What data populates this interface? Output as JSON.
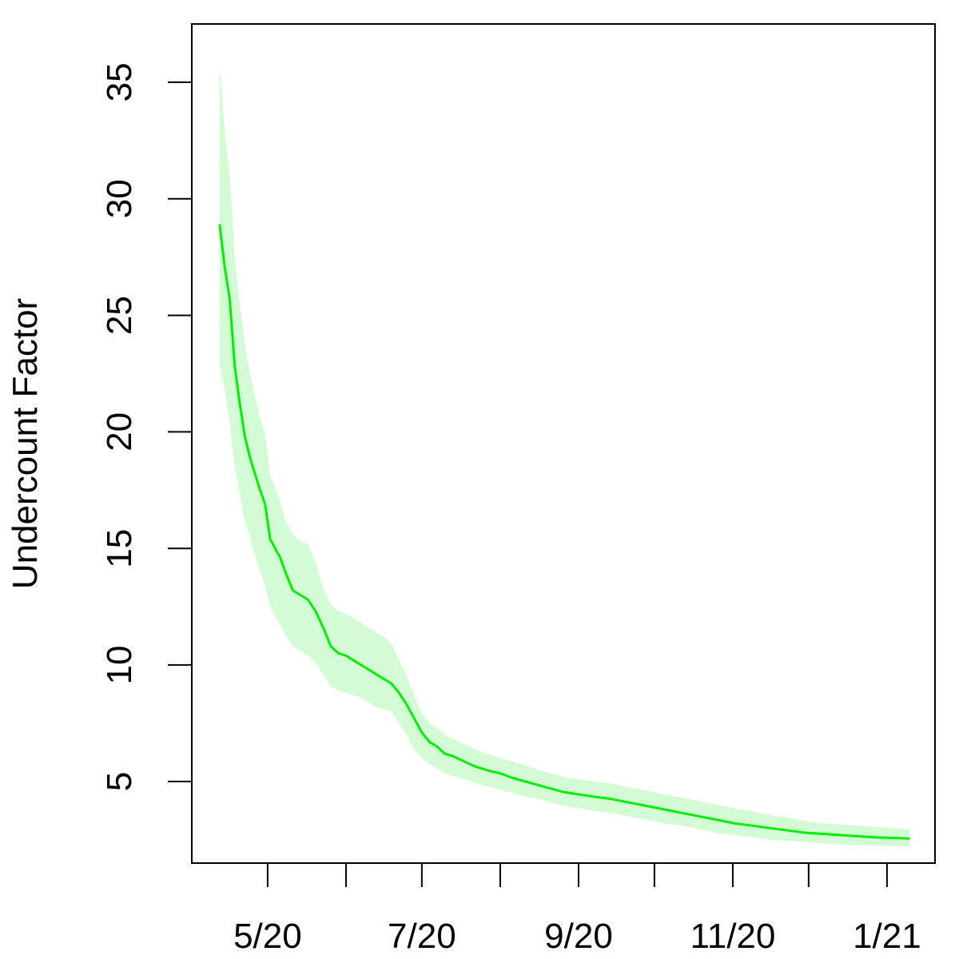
{
  "chart_data": {
    "type": "area",
    "title": "",
    "xlabel": "",
    "ylabel": "Undercount Factor",
    "x_unit": "date",
    "xlim": [
      "2020-04-01",
      "2021-01-20"
    ],
    "ylim": [
      1.5,
      37.5
    ],
    "x_ticks": [
      {
        "date": "2020-05-01",
        "label": "5/20"
      },
      {
        "date": "2020-06-01",
        "label": ""
      },
      {
        "date": "2020-07-01",
        "label": "7/20"
      },
      {
        "date": "2020-08-01",
        "label": ""
      },
      {
        "date": "2020-09-01",
        "label": "9/20"
      },
      {
        "date": "2020-10-01",
        "label": ""
      },
      {
        "date": "2020-11-01",
        "label": "11/20"
      },
      {
        "date": "2020-12-01",
        "label": ""
      },
      {
        "date": "2021-01-01",
        "label": "1/21"
      }
    ],
    "y_ticks": [
      5,
      10,
      15,
      20,
      25,
      30,
      35
    ],
    "grid": false,
    "colors": {
      "line": "#00ee00",
      "band": "#d4fcd4",
      "axis": "#000000"
    },
    "series": [
      {
        "x": [
          "2020-04-12",
          "2020-04-14",
          "2020-04-16",
          "2020-04-18",
          "2020-04-20",
          "2020-04-22",
          "2020-04-24",
          "2020-04-26",
          "2020-04-28",
          "2020-04-30",
          "2020-05-02",
          "2020-05-04",
          "2020-05-06",
          "2020-05-08",
          "2020-05-11",
          "2020-05-14",
          "2020-05-17",
          "2020-05-20",
          "2020-05-23",
          "2020-05-26",
          "2020-05-29",
          "2020-06-01",
          "2020-06-04",
          "2020-06-07",
          "2020-06-10",
          "2020-06-13",
          "2020-06-16",
          "2020-06-19",
          "2020-06-22",
          "2020-06-25",
          "2020-06-28",
          "2020-07-01",
          "2020-07-04",
          "2020-07-07",
          "2020-07-10",
          "2020-07-13",
          "2020-07-16",
          "2020-07-19",
          "2020-07-22",
          "2020-07-25",
          "2020-07-28",
          "2020-08-01",
          "2020-08-06",
          "2020-08-11",
          "2020-08-16",
          "2020-08-21",
          "2020-08-26",
          "2020-09-01",
          "2020-09-07",
          "2020-09-14",
          "2020-09-21",
          "2020-09-28",
          "2020-10-05",
          "2020-10-12",
          "2020-10-19",
          "2020-10-26",
          "2020-11-02",
          "2020-11-09",
          "2020-11-16",
          "2020-11-23",
          "2020-11-30",
          "2020-12-07",
          "2020-12-14",
          "2020-12-21",
          "2020-12-28",
          "2021-01-04",
          "2021-01-10"
        ],
        "y": [
          28.9,
          27.1,
          25.7,
          22.8,
          21.2,
          19.8,
          18.9,
          18.2,
          17.5,
          16.9,
          15.4,
          15.0,
          14.6,
          14.0,
          13.2,
          13.0,
          12.8,
          12.3,
          11.6,
          10.8,
          10.5,
          10.4,
          10.2,
          10.0,
          9.8,
          9.6,
          9.4,
          9.2,
          8.8,
          8.3,
          7.7,
          7.1,
          6.7,
          6.5,
          6.2,
          6.1,
          5.95,
          5.8,
          5.65,
          5.55,
          5.45,
          5.35,
          5.15,
          5.0,
          4.85,
          4.7,
          4.55,
          4.45,
          4.35,
          4.25,
          4.1,
          3.95,
          3.8,
          3.65,
          3.5,
          3.35,
          3.2,
          3.1,
          3.0,
          2.9,
          2.8,
          2.75,
          2.7,
          2.65,
          2.6,
          2.58,
          2.55
        ],
        "lower": [
          22.9,
          21.8,
          20.5,
          18.5,
          17.3,
          16.2,
          15.5,
          14.7,
          14.0,
          13.4,
          12.5,
          12.1,
          11.7,
          11.3,
          10.8,
          10.6,
          10.4,
          10.1,
          9.6,
          9.1,
          8.9,
          8.8,
          8.7,
          8.6,
          8.4,
          8.2,
          8.1,
          8.0,
          7.5,
          7.0,
          6.4,
          6.0,
          5.75,
          5.55,
          5.35,
          5.25,
          5.15,
          5.05,
          4.95,
          4.85,
          4.75,
          4.65,
          4.5,
          4.35,
          4.25,
          4.1,
          3.95,
          3.85,
          3.75,
          3.65,
          3.5,
          3.35,
          3.2,
          3.1,
          2.95,
          2.8,
          2.7,
          2.6,
          2.5,
          2.45,
          2.4,
          2.35,
          2.3,
          2.28,
          2.25,
          2.22,
          2.2
        ],
        "upper": [
          35.7,
          33.0,
          31.0,
          27.5,
          25.5,
          23.8,
          22.5,
          21.5,
          20.6,
          19.9,
          18.1,
          17.6,
          17.0,
          16.2,
          15.6,
          15.3,
          15.2,
          14.4,
          13.3,
          12.6,
          12.3,
          12.2,
          12.0,
          11.8,
          11.6,
          11.4,
          11.2,
          10.9,
          10.2,
          9.5,
          8.7,
          7.9,
          7.5,
          7.3,
          7.0,
          6.85,
          6.7,
          6.55,
          6.4,
          6.25,
          6.15,
          6.0,
          5.85,
          5.7,
          5.5,
          5.35,
          5.2,
          5.1,
          5.0,
          4.9,
          4.75,
          4.6,
          4.45,
          4.3,
          4.15,
          4.0,
          3.85,
          3.7,
          3.55,
          3.45,
          3.3,
          3.2,
          3.15,
          3.1,
          3.05,
          3.0,
          2.95
        ]
      }
    ]
  }
}
